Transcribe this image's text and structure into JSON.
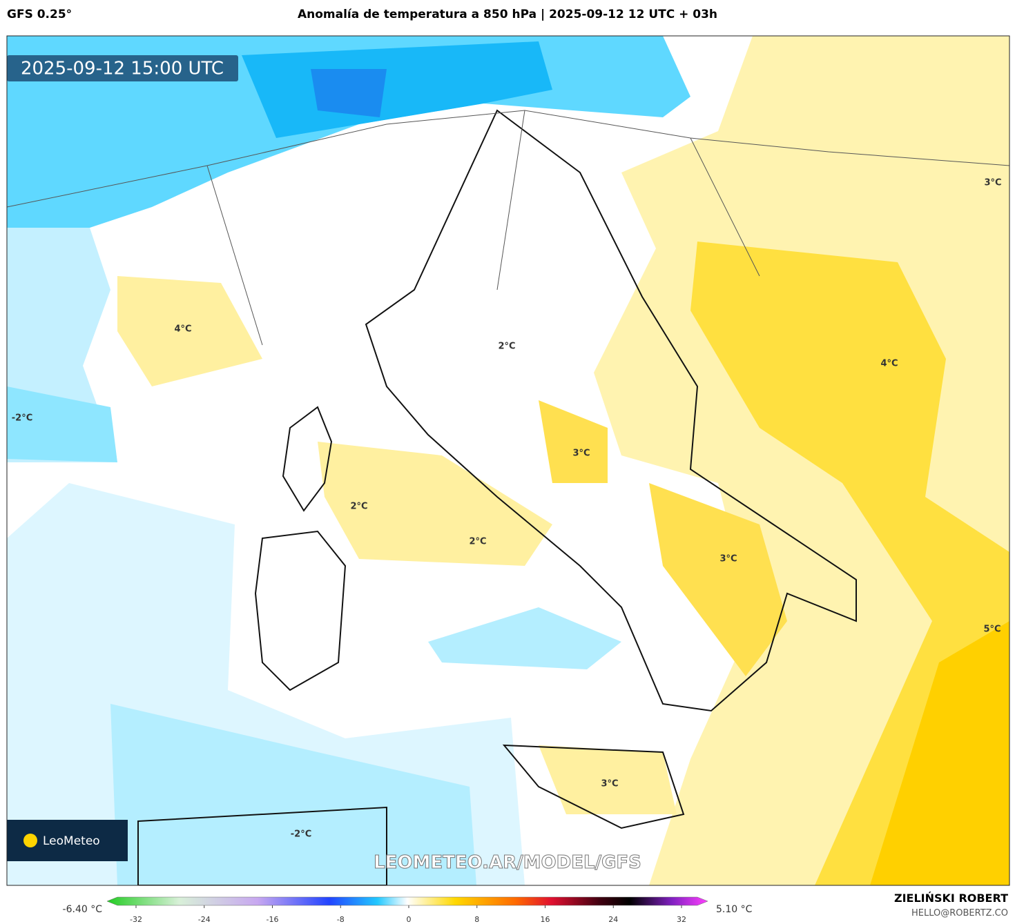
{
  "header": {
    "model": "GFS 0.25°",
    "title": "Anomalía de temperatura a 850 hPa | 2025-09-12 12 UTC + 03h"
  },
  "map": {
    "timestamp": "2025-09-12 15:00 UTC",
    "watermark": "LEOMETEO.AR/MODEL/GFS",
    "logo": "LeoMeteo",
    "labels": [
      "4°C",
      "-2°C",
      "2°C",
      "3°C",
      "2°C",
      "2°C",
      "3°C",
      "3°C",
      "-2°C",
      "3°C",
      "4°C",
      "5°C"
    ]
  },
  "colorbar": {
    "min_label": "-6.40 °C",
    "max_label": "5.10 °C",
    "range": [
      -32,
      32
    ],
    "ticks": [
      -32,
      -24,
      -16,
      -8,
      0,
      8,
      16,
      24,
      32
    ]
  },
  "credit": {
    "name": "ZIELIŃSKI ROBERT",
    "email": "HELLO@ROBERTZ.CO"
  }
}
